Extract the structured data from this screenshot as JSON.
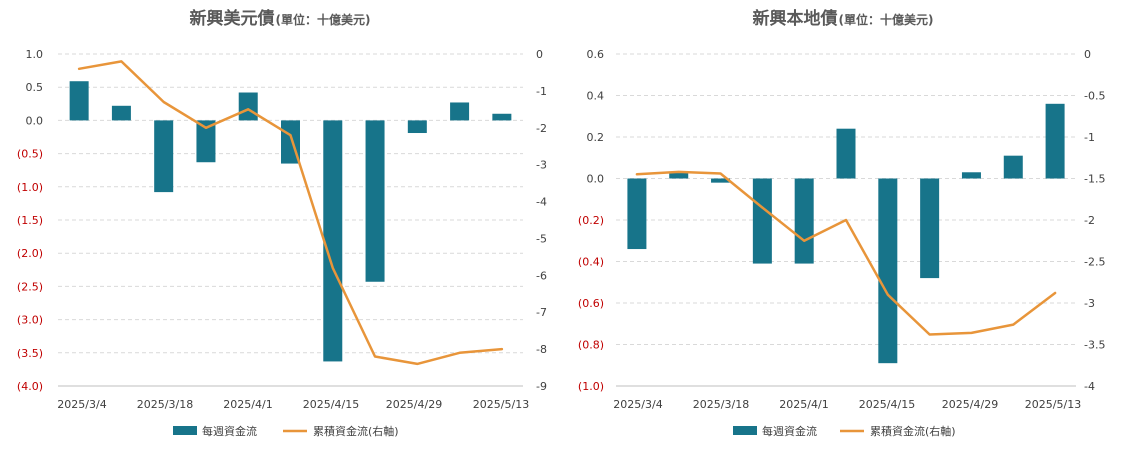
{
  "chart_data": [
    {
      "type": "bar+line",
      "title": "新興美元債",
      "subtitle": "(單位：十億美元)",
      "x_labels_shown": [
        "2025/3/4",
        "2025/3/18",
        "2025/4/1",
        "2025/4/15",
        "2025/4/29",
        "2025/5/13"
      ],
      "ylim_left": [
        -4.0,
        1.0
      ],
      "yticks_left": [
        {
          "v": 1.0,
          "t": "1.0"
        },
        {
          "v": 0.5,
          "t": "0.5"
        },
        {
          "v": 0.0,
          "t": "0.0"
        },
        {
          "v": -0.5,
          "t": "(0.5)"
        },
        {
          "v": -1.0,
          "t": "(1.0)"
        },
        {
          "v": -1.5,
          "t": "(1.5)"
        },
        {
          "v": -2.0,
          "t": "(2.0)"
        },
        {
          "v": -2.5,
          "t": "(2.5)"
        },
        {
          "v": -3.0,
          "t": "(3.0)"
        },
        {
          "v": -3.5,
          "t": "(3.5)"
        },
        {
          "v": -4.0,
          "t": "(4.0)"
        }
      ],
      "ylim_right": [
        -9,
        0
      ],
      "yticks_right": [
        {
          "v": 0,
          "t": "0"
        },
        {
          "v": -1,
          "t": "-1"
        },
        {
          "v": -2,
          "t": "-2"
        },
        {
          "v": -3,
          "t": "-3"
        },
        {
          "v": -4,
          "t": "-4"
        },
        {
          "v": -5,
          "t": "-5"
        },
        {
          "v": -6,
          "t": "-6"
        },
        {
          "v": -7,
          "t": "-7"
        },
        {
          "v": -8,
          "t": "-8"
        },
        {
          "v": -9,
          "t": "-9"
        }
      ],
      "series": [
        {
          "name": "每週資金流",
          "kind": "bar",
          "axis": "left",
          "values": [
            0.59,
            0.22,
            -1.08,
            -0.63,
            0.42,
            -0.65,
            -3.63,
            -2.43,
            -0.19,
            0.27,
            0.1
          ]
        },
        {
          "name": "累積資金流(右軸)",
          "kind": "line",
          "axis": "right",
          "values": [
            -0.4,
            -0.2,
            -1.3,
            -2.0,
            -1.5,
            -2.2,
            -5.8,
            -8.2,
            -8.4,
            -8.1,
            -8.0
          ]
        }
      ]
    },
    {
      "type": "bar+line",
      "title": "新興本地債",
      "subtitle": "(單位：十億美元)",
      "x_labels_shown": [
        "2025/3/4",
        "2025/3/18",
        "2025/4/1",
        "2025/4/15",
        "2025/4/29",
        "2025/5/13"
      ],
      "ylim_left": [
        -1.0,
        0.6
      ],
      "yticks_left": [
        {
          "v": 0.6,
          "t": "0.6"
        },
        {
          "v": 0.4,
          "t": "0.4"
        },
        {
          "v": 0.2,
          "t": "0.2"
        },
        {
          "v": 0.0,
          "t": "0.0"
        },
        {
          "v": -0.2,
          "t": "(0.2)"
        },
        {
          "v": -0.4,
          "t": "(0.4)"
        },
        {
          "v": -0.6,
          "t": "(0.6)"
        },
        {
          "v": -0.8,
          "t": "(0.8)"
        },
        {
          "v": -1.0,
          "t": "(1.0)"
        }
      ],
      "ylim_right": [
        -4,
        0
      ],
      "yticks_right": [
        {
          "v": 0,
          "t": "0"
        },
        {
          "v": -0.5,
          "t": "-0.5"
        },
        {
          "v": -1,
          "t": "-1"
        },
        {
          "v": -1.5,
          "t": "-1.5"
        },
        {
          "v": -2,
          "t": "-2"
        },
        {
          "v": -2.5,
          "t": "-2.5"
        },
        {
          "v": -3,
          "t": "-3"
        },
        {
          "v": -3.5,
          "t": "-3.5"
        },
        {
          "v": -4,
          "t": "-4"
        }
      ],
      "series": [
        {
          "name": "每週資金流",
          "kind": "bar",
          "axis": "left",
          "values": [
            -0.34,
            0.03,
            -0.02,
            -0.41,
            -0.41,
            0.24,
            -0.89,
            -0.48,
            0.03,
            0.11,
            0.36
          ]
        },
        {
          "name": "累積資金流(右軸)",
          "kind": "line",
          "axis": "right",
          "values": [
            -1.45,
            -1.42,
            -1.44,
            -1.85,
            -2.25,
            -2.0,
            -2.9,
            -3.38,
            -3.36,
            -3.26,
            -2.88
          ]
        }
      ]
    }
  ],
  "colors": {
    "bar": "#17748a",
    "line": "#e8953a"
  }
}
